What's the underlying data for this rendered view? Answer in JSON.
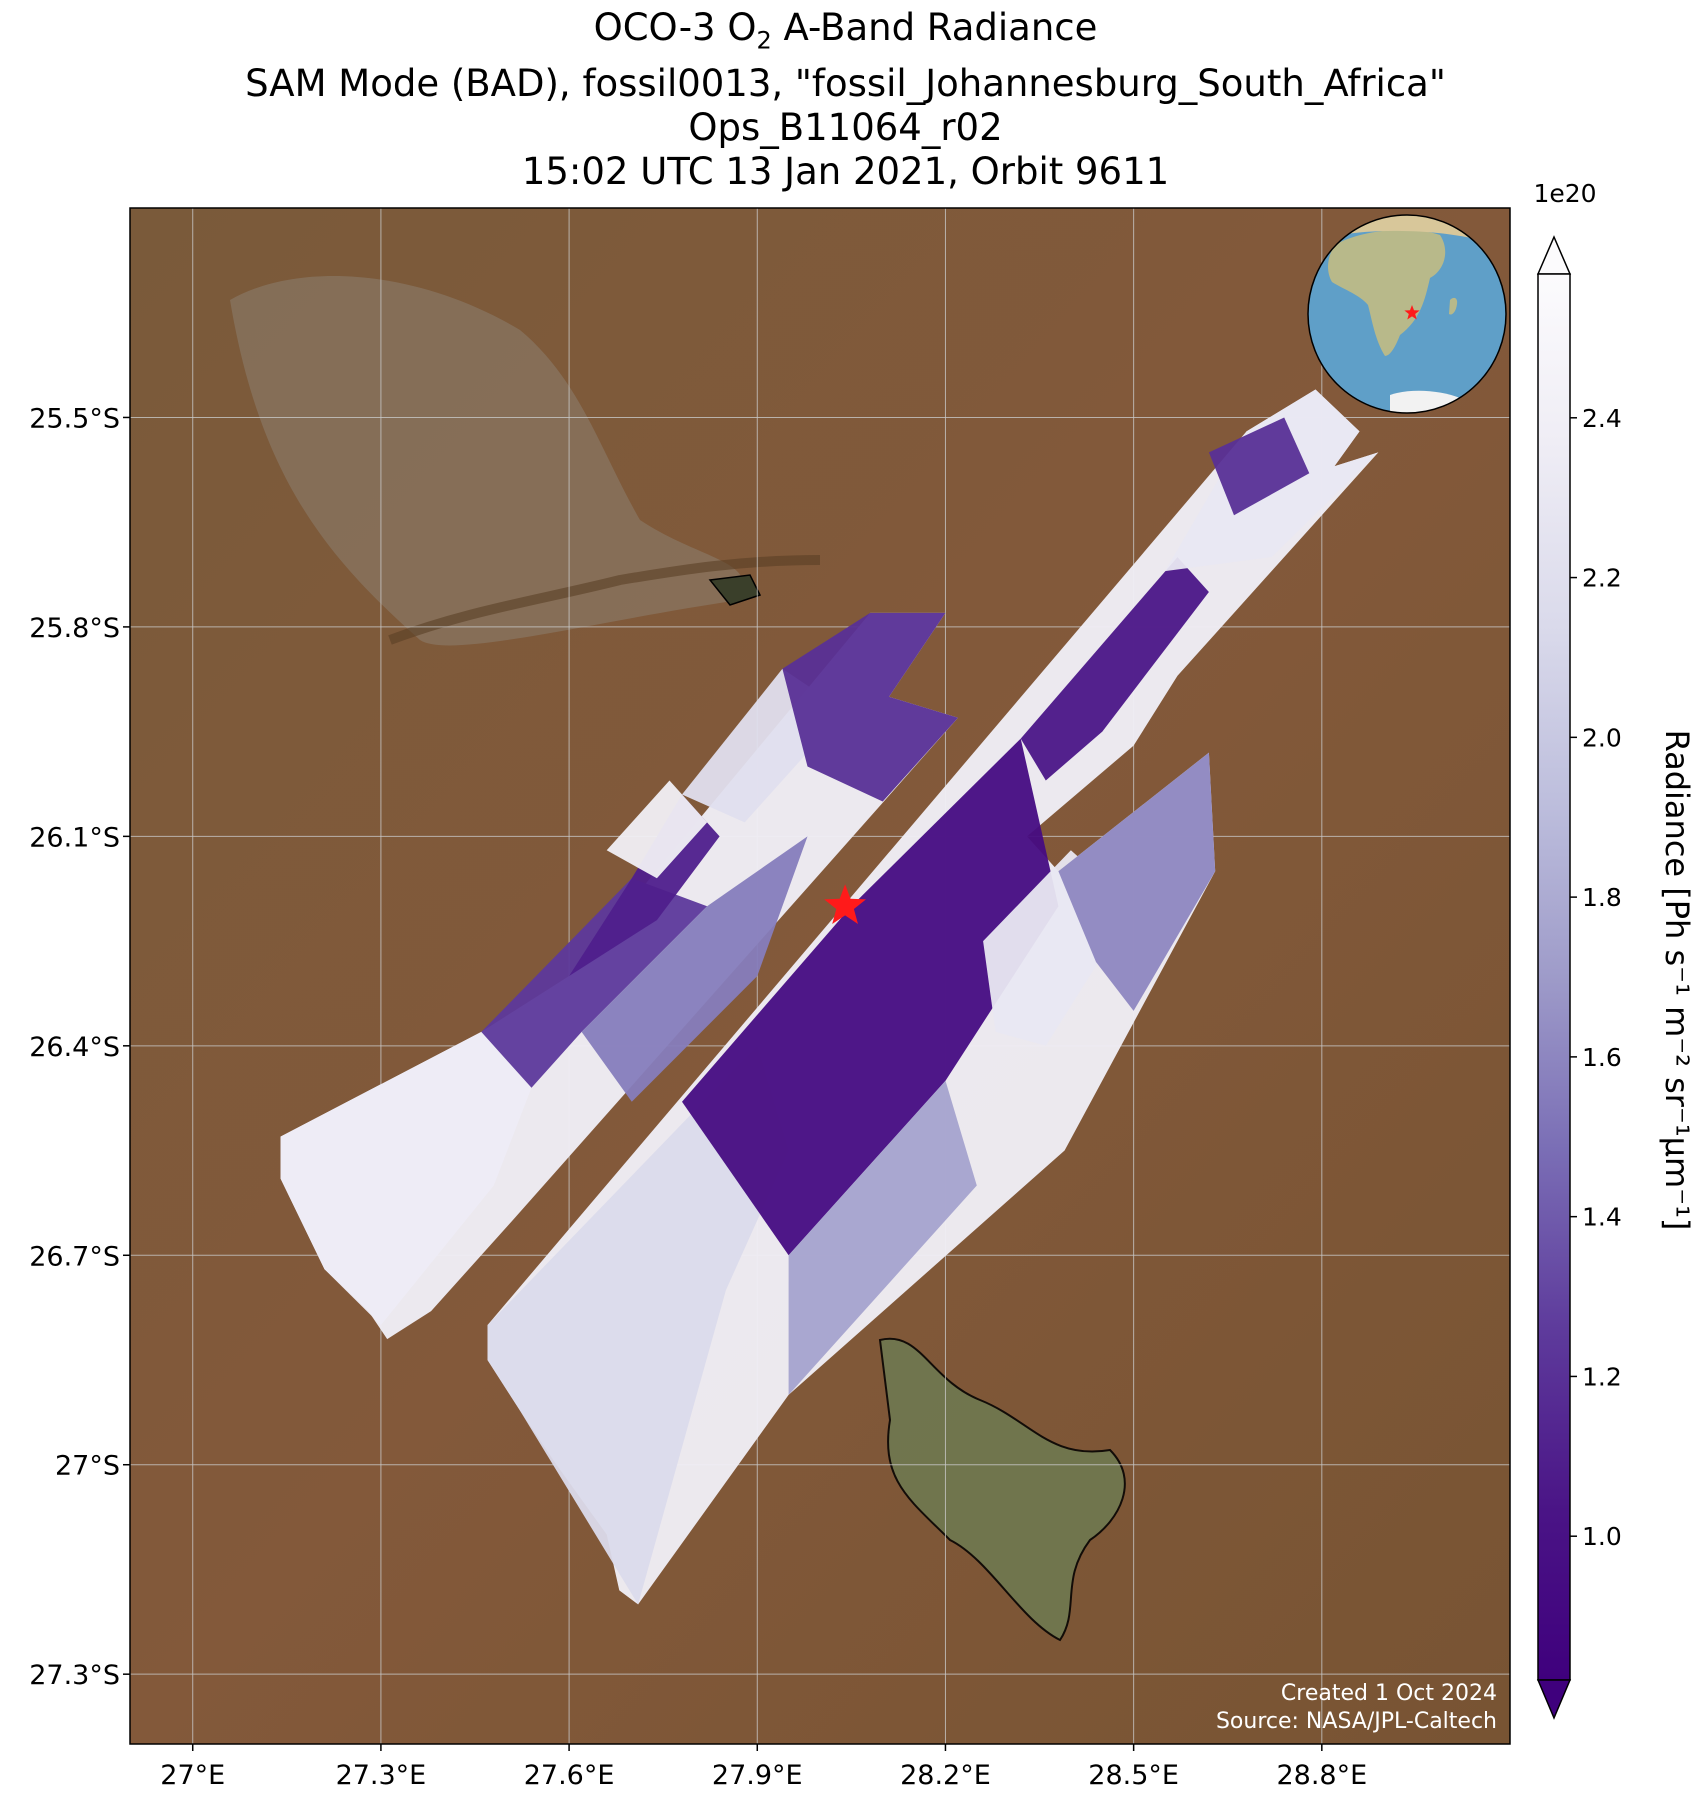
{
  "title": {
    "line1_prefix": "OCO-3 O",
    "line1_sub": "2",
    "line1_suffix": " A-Band Radiance",
    "line2": "SAM Mode (BAD), fossil0013, \"fossil_Johannesburg_South_Africa\"",
    "line3": "Ops_B11064_r02",
    "line4": "15:02 UTC 13 Jan 2021, Orbit 9611"
  },
  "map": {
    "lon_range": [
      26.9,
      29.1
    ],
    "lat_range": [
      -27.4,
      -25.2
    ],
    "lon_ticks": [
      {
        "value": 27.0,
        "label": "27°E"
      },
      {
        "value": 27.3,
        "label": "27.3°E"
      },
      {
        "value": 27.6,
        "label": "27.6°E"
      },
      {
        "value": 27.9,
        "label": "27.9°E"
      },
      {
        "value": 28.2,
        "label": "28.2°E"
      },
      {
        "value": 28.5,
        "label": "28.5°E"
      },
      {
        "value": 28.8,
        "label": "28.8°E"
      }
    ],
    "lat_ticks": [
      {
        "value": -25.5,
        "label": "25.5°S"
      },
      {
        "value": -25.8,
        "label": "25.8°S"
      },
      {
        "value": -26.1,
        "label": "26.1°S"
      },
      {
        "value": -26.4,
        "label": "26.4°S"
      },
      {
        "value": -26.7,
        "label": "26.7°S"
      },
      {
        "value": -27.0,
        "label": "27°S"
      },
      {
        "value": -27.3,
        "label": "27.3°S"
      }
    ],
    "grid": true,
    "target": {
      "lon": 28.04,
      "lat": -26.2,
      "color": "#ff1a1a"
    },
    "background": "satellite-imagery",
    "inset": "globe-africa-with-red-star-top-right"
  },
  "colorbar": {
    "label_text": "Radiance [Ph s⁻¹ m⁻² sr⁻¹μm⁻¹]",
    "scale_note": "1e20",
    "range": [
      0.82,
      2.58
    ],
    "ticks": [
      {
        "value": 1.0,
        "label": "1.0"
      },
      {
        "value": 1.2,
        "label": "1.2"
      },
      {
        "value": 1.4,
        "label": "1.4"
      },
      {
        "value": 1.6,
        "label": "1.6"
      },
      {
        "value": 1.8,
        "label": "1.8"
      },
      {
        "value": 2.0,
        "label": "2.0"
      },
      {
        "value": 2.2,
        "label": "2.2"
      },
      {
        "value": 2.4,
        "label": "2.4"
      }
    ],
    "colormap": "Purples_r",
    "extend": "both"
  },
  "credit": {
    "line1": "Created 1 Oct 2024",
    "line2": "Source: NASA/JPL-Caltech"
  },
  "chart_data": {
    "type": "heatmap",
    "title": "OCO-3 O2 A-Band Radiance",
    "xlabel": "",
    "ylabel": "",
    "zlabel": "Radiance [Ph s⁻¹ m⁻² sr⁻¹μm⁻¹]",
    "zscale": "1e20",
    "xlim": [
      26.9,
      29.1
    ],
    "ylim": [
      -27.4,
      -25.2
    ],
    "swaths": [
      {
        "polygon": [
          [
            27.14,
            -26.53
          ],
          [
            27.46,
            -26.38
          ],
          [
            27.6,
            -26.3
          ],
          [
            28.08,
            -25.78
          ],
          [
            28.2,
            -25.78
          ],
          [
            28.11,
            -25.9
          ],
          [
            28.22,
            -25.93
          ],
          [
            27.51,
            -26.65
          ],
          [
            27.38,
            -26.78
          ],
          [
            27.31,
            -26.82
          ],
          [
            27.28,
            -26.78
          ],
          [
            27.21,
            -26.72
          ],
          [
            27.14,
            -26.59
          ]
        ],
        "regions": [
          {
            "polygon": [
              [
                27.14,
                -26.53
              ],
              [
                27.46,
                -26.38
              ],
              [
                27.54,
                -26.46
              ],
              [
                27.48,
                -26.6
              ],
              [
                27.3,
                -26.8
              ],
              [
                27.21,
                -26.72
              ],
              [
                27.14,
                -26.59
              ]
            ],
            "value": 2.35
          },
          {
            "polygon": [
              [
                27.46,
                -26.38
              ],
              [
                27.7,
                -26.16
              ],
              [
                27.82,
                -26.2
              ],
              [
                27.62,
                -26.38
              ],
              [
                27.54,
                -26.46
              ]
            ],
            "value": 1.25
          },
          {
            "polygon": [
              [
                27.6,
                -26.3
              ],
              [
                27.7,
                -26.16
              ],
              [
                27.78,
                -26.04
              ],
              [
                27.84,
                -26.1
              ],
              [
                27.74,
                -26.22
              ]
            ],
            "value": 1.1
          },
          {
            "polygon": [
              [
                27.66,
                -26.12
              ],
              [
                27.76,
                -26.02
              ],
              [
                27.82,
                -26.08
              ],
              [
                27.74,
                -26.16
              ]
            ],
            "value": 2.4
          },
          {
            "polygon": [
              [
                27.78,
                -26.04
              ],
              [
                27.94,
                -25.86
              ],
              [
                28.04,
                -25.92
              ],
              [
                27.88,
                -26.08
              ]
            ],
            "value": 2.2
          },
          {
            "polygon": [
              [
                27.94,
                -25.86
              ],
              [
                28.08,
                -25.78
              ],
              [
                28.2,
                -25.78
              ],
              [
                28.11,
                -25.9
              ],
              [
                28.22,
                -25.93
              ],
              [
                28.1,
                -26.05
              ],
              [
                27.98,
                -26.0
              ]
            ],
            "value": 1.2
          },
          {
            "polygon": [
              [
                27.62,
                -26.38
              ],
              [
                27.82,
                -26.2
              ],
              [
                27.98,
                -26.1
              ],
              [
                27.9,
                -26.3
              ],
              [
                27.7,
                -26.48
              ]
            ],
            "value": 1.55
          }
        ]
      },
      {
        "polygon": [
          [
            27.47,
            -26.8
          ],
          [
            28.68,
            -25.52
          ],
          [
            28.79,
            -25.46
          ],
          [
            28.86,
            -25.52
          ],
          [
            28.82,
            -25.57
          ],
          [
            28.89,
            -25.55
          ],
          [
            28.57,
            -25.87
          ],
          [
            28.5,
            -25.97
          ],
          [
            28.33,
            -26.1
          ],
          [
            28.38,
            -26.15
          ],
          [
            28.62,
            -25.98
          ],
          [
            28.63,
            -26.15
          ],
          [
            28.39,
            -26.55
          ],
          [
            27.95,
            -26.9
          ],
          [
            27.71,
            -27.2
          ],
          [
            27.68,
            -27.18
          ],
          [
            27.66,
            -27.1
          ],
          [
            27.58,
            -27.0
          ],
          [
            27.52,
            -26.92
          ],
          [
            27.47,
            -26.85
          ]
        ],
        "regions": [
          {
            "polygon": [
              [
                27.47,
                -26.8
              ],
              [
                27.9,
                -26.4
              ],
              [
                27.95,
                -26.55
              ],
              [
                27.85,
                -26.75
              ],
              [
                27.71,
                -27.2
              ],
              [
                27.52,
                -26.92
              ],
              [
                27.47,
                -26.85
              ]
            ],
            "value": 2.15
          },
          {
            "polygon": [
              [
                27.78,
                -26.48
              ],
              [
                28.05,
                -26.2
              ],
              [
                28.32,
                -25.96
              ],
              [
                28.38,
                -26.2
              ],
              [
                28.2,
                -26.45
              ],
              [
                27.95,
                -26.7
              ]
            ],
            "value": 0.95
          },
          {
            "polygon": [
              [
                28.32,
                -25.96
              ],
              [
                28.57,
                -25.7
              ],
              [
                28.62,
                -25.75
              ],
              [
                28.45,
                -25.95
              ],
              [
                28.36,
                -26.02
              ]
            ],
            "value": 1.05
          },
          {
            "polygon": [
              [
                28.55,
                -25.72
              ],
              [
                28.68,
                -25.52
              ],
              [
                28.79,
                -25.46
              ],
              [
                28.86,
                -25.52
              ],
              [
                28.82,
                -25.57
              ],
              [
                28.89,
                -25.55
              ],
              [
                28.72,
                -25.7
              ]
            ],
            "value": 2.3
          },
          {
            "polygon": [
              [
                28.62,
                -25.55
              ],
              [
                28.74,
                -25.5
              ],
              [
                28.78,
                -25.58
              ],
              [
                28.66,
                -25.64
              ]
            ],
            "value": 1.2
          },
          {
            "polygon": [
              [
                28.26,
                -26.25
              ],
              [
                28.4,
                -26.12
              ],
              [
                28.5,
                -26.2
              ],
              [
                28.36,
                -26.4
              ],
              [
                28.28,
                -26.38
              ]
            ],
            "value": 2.3
          },
          {
            "polygon": [
              [
                28.38,
                -26.15
              ],
              [
                28.62,
                -25.98
              ],
              [
                28.63,
                -26.15
              ],
              [
                28.5,
                -26.35
              ],
              [
                28.44,
                -26.28
              ]
            ],
            "value": 1.6
          },
          {
            "polygon": [
              [
                27.95,
                -26.7
              ],
              [
                28.2,
                -26.45
              ],
              [
                28.25,
                -26.6
              ],
              [
                27.95,
                -26.9
              ]
            ],
            "value": 1.75
          }
        ]
      }
    ]
  }
}
